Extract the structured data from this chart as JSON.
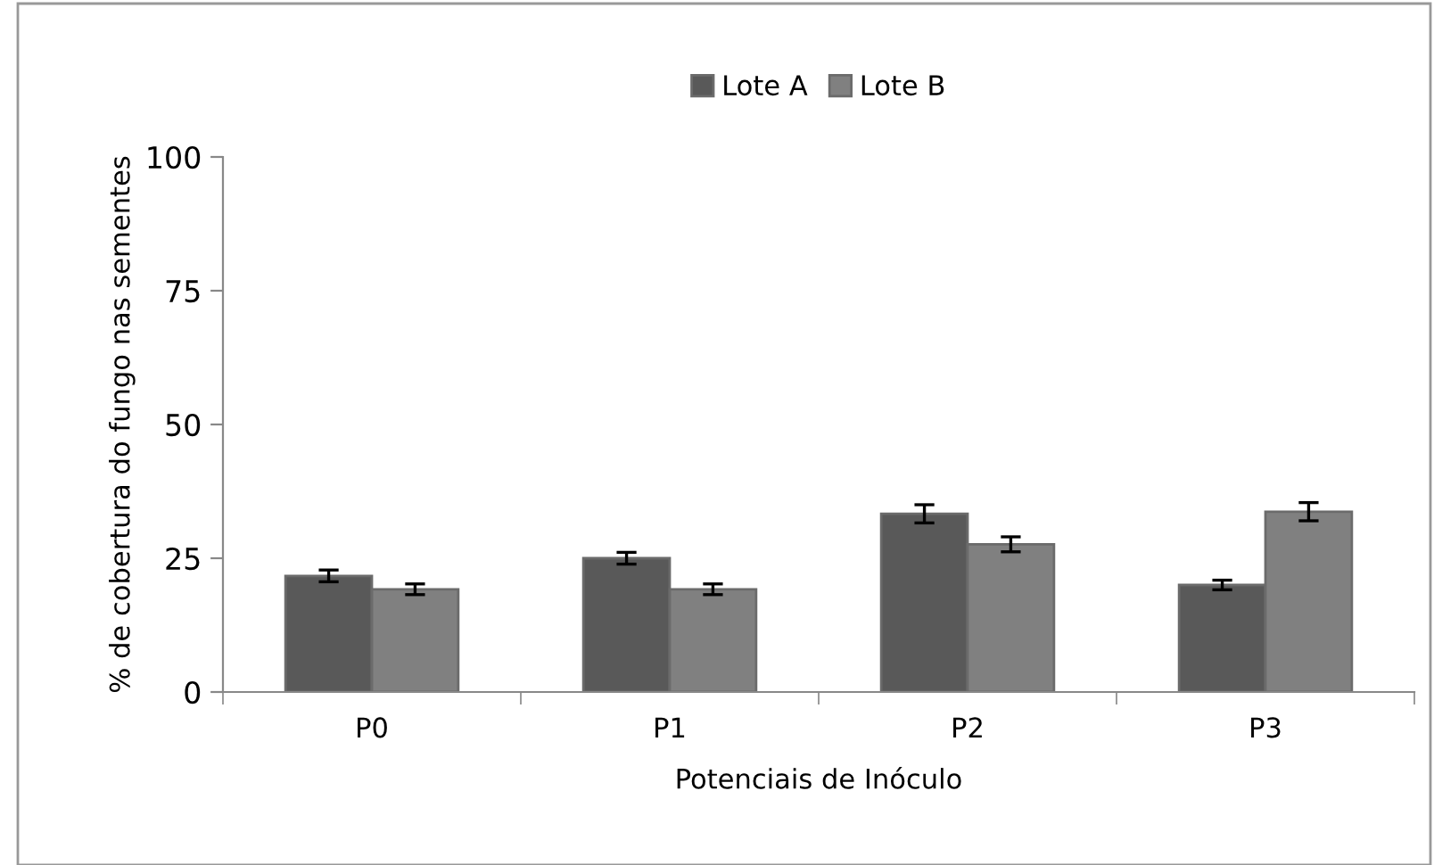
{
  "chart_data": {
    "type": "bar",
    "xlabel": "Potenciais de Inóculo",
    "ylabel": "% de cobertura do fungo nas sementes",
    "categories": [
      "P0",
      "P1",
      "P2",
      "P3"
    ],
    "series": [
      {
        "name": "Lote A",
        "color": "#595959",
        "values": [
          21.7,
          25.0,
          33.3,
          20.0
        ],
        "errors": [
          1.1,
          1.1,
          1.7,
          0.9
        ]
      },
      {
        "name": "Lote B",
        "color": "#808080",
        "values": [
          19.2,
          19.2,
          27.6,
          33.7
        ],
        "errors": [
          1.0,
          1.0,
          1.4,
          1.7
        ]
      }
    ],
    "ylim": [
      0,
      100
    ],
    "yticks": [
      0,
      25,
      50,
      75,
      100
    ],
    "grid": false,
    "legend": "top"
  }
}
